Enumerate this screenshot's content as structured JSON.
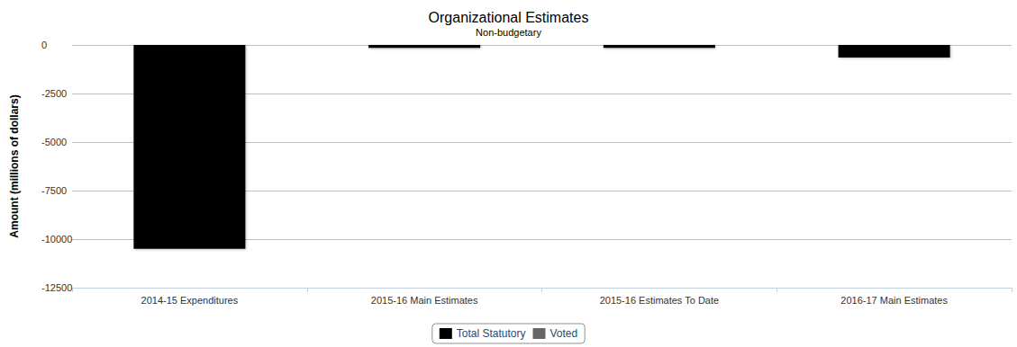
{
  "chart_data": {
    "type": "bar",
    "title": "Organizational Estimates",
    "subtitle": "Non-budgetary",
    "y_label": "Amount (millions of dollars)",
    "categories": [
      "2014-15 Expenditures",
      "2015-16 Main Estimates",
      "2015-16 Estimates To Date",
      "2016-17 Main Estimates"
    ],
    "series": [
      {
        "name": "Total Statutory",
        "color": "#000000",
        "values": [
          -10500,
          -150,
          -150,
          -650
        ]
      },
      {
        "name": "Voted",
        "color": "#666666",
        "values": [
          0,
          0,
          0,
          0
        ]
      }
    ],
    "ylim": [
      -12500,
      0
    ],
    "yticks": [
      -12500,
      -10000,
      -7500,
      -5000,
      -2500,
      0
    ],
    "grid": true,
    "legend": "bottom",
    "stacked": true
  }
}
